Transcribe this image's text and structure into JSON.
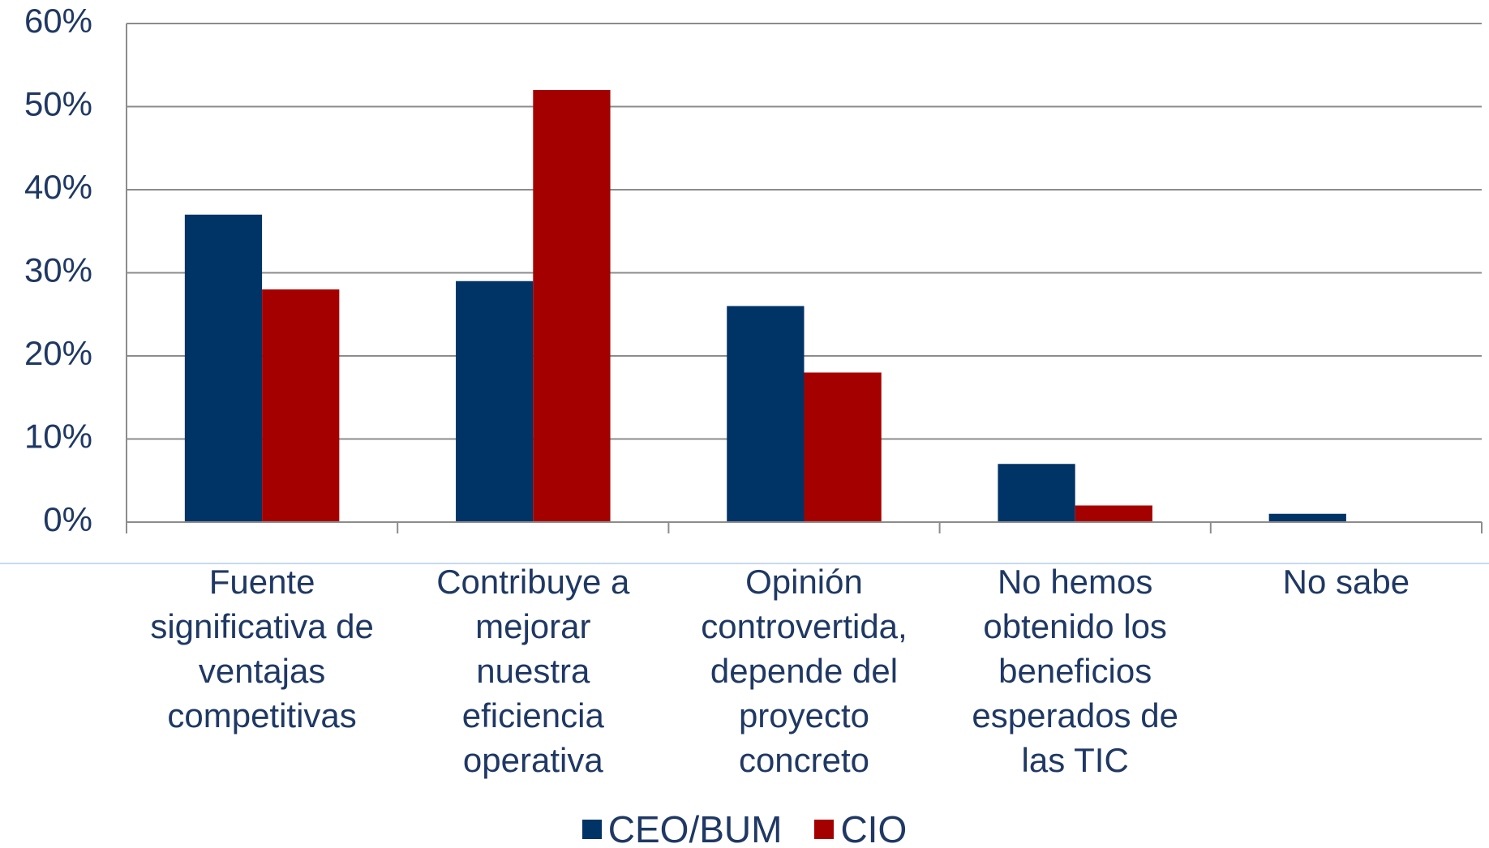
{
  "chart_data": {
    "type": "bar",
    "categories": [
      "Fuente significativa de ventajas competitivas",
      "Contribuye a mejorar nuestra eficiencia operativa",
      "Opinión controvertida, depende del proyecto concreto",
      "No hemos obtenido los beneficios esperados de las TIC",
      "No sabe"
    ],
    "series": [
      {
        "name": "CEO/BUM",
        "color": "#003366",
        "values": [
          37,
          29,
          26,
          7,
          1
        ]
      },
      {
        "name": "CIO",
        "color": "#a50000",
        "values": [
          28,
          52,
          18,
          2,
          0
        ]
      }
    ],
    "ylim": [
      0,
      60
    ],
    "yticks": [
      {
        "value": 0,
        "label": "0%"
      },
      {
        "value": 10,
        "label": "10%"
      },
      {
        "value": 20,
        "label": "20%"
      },
      {
        "value": 30,
        "label": "30%"
      },
      {
        "value": 40,
        "label": "40%"
      },
      {
        "value": 50,
        "label": "50%"
      },
      {
        "value": 60,
        "label": "60%"
      }
    ],
    "grid": true,
    "legend": "bottom"
  }
}
